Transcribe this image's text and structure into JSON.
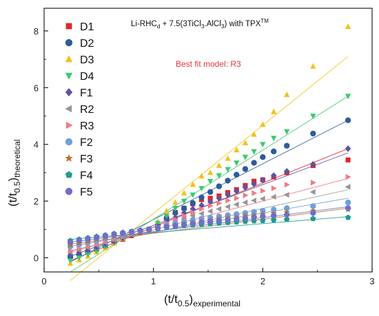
{
  "chart_data": {
    "type": "scatter",
    "title_main": "Li-RHC",
    "title_sub": "d",
    "title_mid": " + 7.5(3TiCl",
    "title_sub2": "3",
    "title_mid2": ".AlCl",
    "title_sub3": "3",
    "title_end": ") with TPX",
    "title_sup": "TM",
    "annotation": "Best fit model: R3",
    "annotation_color": "#e8323c",
    "xlabel_main": "(t/t",
    "xlabel_sub": "0.5",
    "xlabel_end": ")",
    "xlabel_sub2": "experimental",
    "ylabel_main": "(t/t",
    "ylabel_sub": "0.5",
    "ylabel_end": ")",
    "ylabel_sub2": "theoretical",
    "xlim": [
      0,
      3
    ],
    "ylim": [
      -0.5,
      8.8
    ],
    "xticks": [
      0,
      1,
      2,
      3
    ],
    "yticks": [
      0,
      2,
      4,
      6,
      8
    ],
    "xtick_labels": [
      "0",
      "1",
      "2",
      "3"
    ],
    "ytick_labels": [
      "0",
      "2",
      "4",
      "6",
      "8"
    ],
    "legend_position": "top-left",
    "grid": false,
    "x": [
      0.24,
      0.32,
      0.4,
      0.48,
      0.56,
      0.64,
      0.72,
      0.8,
      0.88,
      0.96,
      1.04,
      1.12,
      1.2,
      1.28,
      1.36,
      1.44,
      1.52,
      1.6,
      1.68,
      1.76,
      1.84,
      1.92,
      2.0,
      2.1,
      2.22,
      2.46,
      2.78
    ],
    "series": [
      {
        "name": "D1",
        "marker": "square",
        "color": "#e3242b",
        "values": [
          0.05,
          0.12,
          0.2,
          0.3,
          0.41,
          0.52,
          0.65,
          0.78,
          0.9,
          1.0,
          1.15,
          1.4,
          1.6,
          1.75,
          1.9,
          2.05,
          2.1,
          2.18,
          2.3,
          2.4,
          2.55,
          2.7,
          2.75,
          2.85,
          3.0,
          3.25,
          3.45
        ]
      },
      {
        "name": "D2",
        "marker": "circle",
        "color": "#2e5c9a",
        "values": [
          0.02,
          0.1,
          0.2,
          0.31,
          0.43,
          0.56,
          0.69,
          0.82,
          0.94,
          1.0,
          1.17,
          1.38,
          1.58,
          1.74,
          1.93,
          2.13,
          2.32,
          2.52,
          2.72,
          2.93,
          3.13,
          3.35,
          3.55,
          3.75,
          3.95,
          4.38,
          4.85
        ]
      },
      {
        "name": "D3",
        "marker": "triangle-up",
        "color": "#f2c21b",
        "values": [
          -0.2,
          -0.08,
          0.05,
          0.2,
          0.35,
          0.52,
          0.68,
          0.82,
          0.95,
          1.0,
          1.28,
          1.65,
          1.95,
          2.28,
          2.58,
          2.88,
          3.0,
          3.25,
          3.5,
          3.8,
          4.05,
          4.35,
          4.7,
          5.15,
          5.75,
          6.75,
          8.15
        ]
      },
      {
        "name": "D4",
        "marker": "triangle-down",
        "color": "#3cc96f",
        "values": [
          -0.1,
          0.0,
          0.12,
          0.25,
          0.38,
          0.53,
          0.67,
          0.81,
          0.93,
          1.0,
          1.22,
          1.48,
          1.75,
          2.0,
          2.22,
          2.45,
          2.7,
          2.9,
          3.12,
          3.35,
          3.55,
          3.75,
          4.0,
          4.22,
          4.45,
          5.0,
          5.7
        ]
      },
      {
        "name": "F1",
        "marker": "diamond",
        "color": "#5a55a3",
        "values": [
          0.1,
          0.18,
          0.27,
          0.37,
          0.48,
          0.58,
          0.7,
          0.81,
          0.92,
          1.0,
          1.1,
          1.28,
          1.42,
          1.58,
          1.72,
          1.85,
          1.98,
          2.1,
          2.22,
          2.35,
          2.48,
          2.6,
          2.74,
          2.9,
          3.05,
          3.3,
          3.85
        ]
      },
      {
        "name": "R2",
        "marker": "triangle-left",
        "color": "#969696",
        "values": [
          0.2,
          0.28,
          0.36,
          0.45,
          0.54,
          0.63,
          0.73,
          0.82,
          0.92,
          1.0,
          1.06,
          1.18,
          1.28,
          1.38,
          1.48,
          1.56,
          1.64,
          1.72,
          1.8,
          1.88,
          1.95,
          2.02,
          2.08,
          2.15,
          2.22,
          2.32,
          2.5
        ]
      },
      {
        "name": "R3",
        "marker": "triangle-right",
        "color": "#f07c86",
        "values": [
          0.25,
          0.32,
          0.4,
          0.48,
          0.57,
          0.66,
          0.75,
          0.84,
          0.93,
          1.0,
          1.08,
          1.22,
          1.35,
          1.48,
          1.6,
          1.72,
          1.83,
          1.92,
          2.02,
          2.1,
          2.2,
          2.28,
          2.36,
          2.45,
          2.58,
          2.65,
          2.85
        ]
      },
      {
        "name": "F2",
        "marker": "circle",
        "color": "#6fa0dc",
        "values": [
          0.4,
          0.47,
          0.54,
          0.61,
          0.68,
          0.75,
          0.82,
          0.89,
          0.95,
          1.0,
          1.05,
          1.15,
          1.22,
          1.28,
          1.33,
          1.38,
          1.42,
          1.46,
          1.5,
          1.54,
          1.58,
          1.62,
          1.66,
          1.7,
          1.75,
          1.82,
          1.95
        ]
      },
      {
        "name": "F3",
        "marker": "star",
        "color": "#b8742c",
        "values": [
          0.45,
          0.52,
          0.58,
          0.65,
          0.71,
          0.77,
          0.83,
          0.89,
          0.95,
          1.0,
          1.04,
          1.1,
          1.15,
          1.2,
          1.25,
          1.29,
          1.33,
          1.37,
          1.41,
          1.44,
          1.48,
          1.51,
          1.54,
          1.57,
          1.61,
          1.66,
          1.7
        ]
      },
      {
        "name": "F4",
        "marker": "pentagon",
        "color": "#1f9b91",
        "values": [
          0.6,
          0.65,
          0.7,
          0.75,
          0.8,
          0.85,
          0.89,
          0.93,
          0.97,
          1.0,
          1.03,
          1.07,
          1.1,
          1.13,
          1.16,
          1.18,
          1.2,
          1.22,
          1.24,
          1.26,
          1.28,
          1.3,
          1.31,
          1.33,
          1.35,
          1.38,
          1.42
        ]
      },
      {
        "name": "F5",
        "marker": "circle",
        "color": "#6f6fc8",
        "values": [
          0.55,
          0.61,
          0.67,
          0.72,
          0.78,
          0.83,
          0.87,
          0.92,
          0.96,
          1.0,
          1.04,
          1.09,
          1.13,
          1.17,
          1.21,
          1.25,
          1.28,
          1.31,
          1.34,
          1.37,
          1.4,
          1.43,
          1.46,
          1.49,
          1.52,
          1.58,
          1.75
        ]
      }
    ],
    "fit_lines": [
      {
        "name": "D1",
        "points": [
          [
            0.24,
            -0.1
          ],
          [
            2.78,
            3.85
          ]
        ],
        "color": "#e3242b"
      },
      {
        "name": "D2",
        "points": [
          [
            0.24,
            -0.15
          ],
          [
            2.78,
            4.85
          ]
        ],
        "color": "#2e5c9a"
      },
      {
        "name": "D3",
        "points": [
          [
            0.24,
            -0.8
          ],
          [
            2.78,
            7.1
          ]
        ],
        "color": "#f2c21b"
      },
      {
        "name": "D4",
        "points": [
          [
            0.24,
            -0.5
          ],
          [
            2.78,
            5.7
          ]
        ],
        "color": "#3cc96f"
      },
      {
        "name": "F1",
        "points": [
          [
            0.24,
            0.05
          ],
          [
            2.78,
            3.7
          ]
        ],
        "color": "#5a55a3"
      },
      {
        "name": "R2",
        "points": [
          [
            0.24,
            0.25
          ],
          [
            2.78,
            2.4
          ]
        ],
        "color": "#969696"
      },
      {
        "name": "R3",
        "points": [
          [
            0.24,
            0.2
          ],
          [
            2.78,
            2.8
          ]
        ],
        "color": "#f07c86"
      },
      {
        "name": "F2",
        "points": [
          [
            0.24,
            0.4
          ],
          [
            2.78,
            2.1
          ]
        ],
        "color": "#6fa0dc"
      },
      {
        "name": "F3",
        "points": [
          [
            0.24,
            0.48
          ],
          [
            2.78,
            1.75
          ]
        ],
        "color": "#b8742c"
      },
      {
        "name": "F4",
        "points": [
          [
            0.24,
            0.65
          ],
          [
            2.78,
            1.45
          ]
        ],
        "color": "#1f9b91"
      },
      {
        "name": "F5",
        "points": [
          [
            0.24,
            0.55
          ],
          [
            2.78,
            1.8
          ]
        ],
        "color": "#6f6fc8"
      }
    ]
  }
}
